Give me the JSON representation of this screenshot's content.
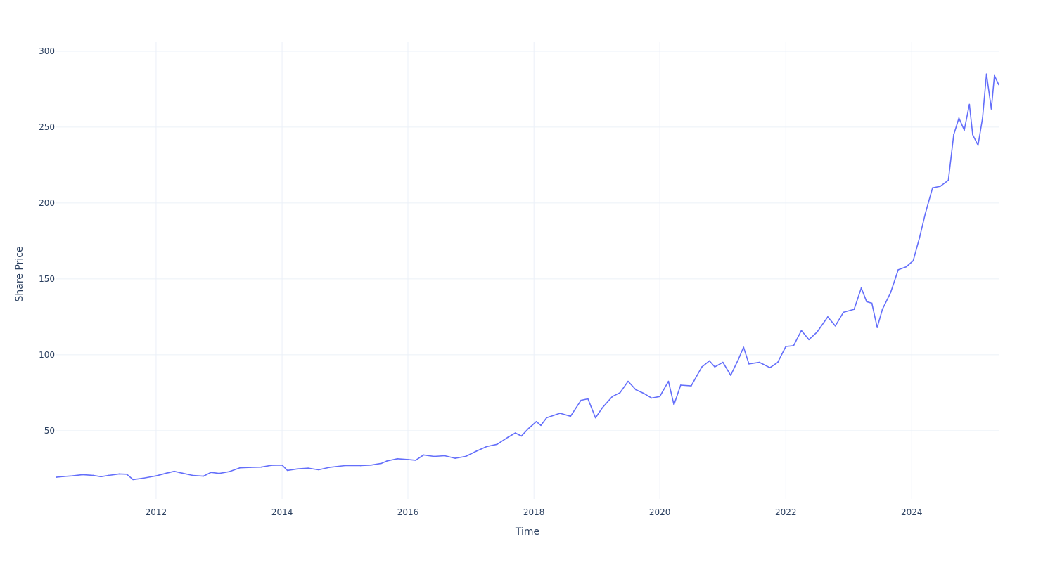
{
  "chart_data": {
    "type": "line",
    "title": "",
    "xlabel": "Time",
    "ylabel": "Share Price",
    "x_range": [
      "2010-06-01",
      "2025-05-20"
    ],
    "ylim": [
      5,
      306
    ],
    "x_ticks": [
      {
        "date": "2012-01-01",
        "label": "2012"
      },
      {
        "date": "2014-01-01",
        "label": "2014"
      },
      {
        "date": "2016-01-01",
        "label": "2016"
      },
      {
        "date": "2018-01-01",
        "label": "2018"
      },
      {
        "date": "2020-01-01",
        "label": "2020"
      },
      {
        "date": "2022-01-01",
        "label": "2022"
      },
      {
        "date": "2024-01-01",
        "label": "2024"
      }
    ],
    "y_ticks": [
      50,
      100,
      150,
      200,
      250,
      300
    ],
    "grid": true,
    "legend": "none",
    "line_color": "#636efa",
    "series": [
      {
        "points": [
          [
            "2010-06-01",
            19.3
          ],
          [
            "2010-07-15",
            19.8
          ],
          [
            "2010-09-01",
            20.2
          ],
          [
            "2010-11-01",
            21.0
          ],
          [
            "2011-01-01",
            20.5
          ],
          [
            "2011-02-15",
            19.7
          ],
          [
            "2011-04-01",
            20.5
          ],
          [
            "2011-06-01",
            21.5
          ],
          [
            "2011-07-15",
            21.3
          ],
          [
            "2011-08-20",
            17.8
          ],
          [
            "2011-10-15",
            18.6
          ],
          [
            "2011-12-01",
            19.6
          ],
          [
            "2012-01-01",
            20.2
          ],
          [
            "2012-03-01",
            22.0
          ],
          [
            "2012-04-15",
            23.2
          ],
          [
            "2012-06-01",
            22.0
          ],
          [
            "2012-08-01",
            20.5
          ],
          [
            "2012-10-01",
            20.0
          ],
          [
            "2012-11-15",
            22.5
          ],
          [
            "2013-01-01",
            21.8
          ],
          [
            "2013-03-01",
            23.0
          ],
          [
            "2013-05-01",
            25.5
          ],
          [
            "2013-07-01",
            25.8
          ],
          [
            "2013-09-01",
            26.0
          ],
          [
            "2013-11-01",
            27.2
          ],
          [
            "2014-01-01",
            27.3
          ],
          [
            "2014-02-01",
            23.8
          ],
          [
            "2014-04-01",
            24.8
          ],
          [
            "2014-06-01",
            25.3
          ],
          [
            "2014-08-01",
            24.2
          ],
          [
            "2014-10-01",
            25.8
          ],
          [
            "2015-01-01",
            27.0
          ],
          [
            "2015-04-01",
            27.0
          ],
          [
            "2015-06-01",
            27.3
          ],
          [
            "2015-08-01",
            28.5
          ],
          [
            "2015-09-01",
            30.0
          ],
          [
            "2015-11-01",
            31.5
          ],
          [
            "2016-01-01",
            31.0
          ],
          [
            "2016-02-15",
            30.5
          ],
          [
            "2016-04-01",
            34.0
          ],
          [
            "2016-06-01",
            33.0
          ],
          [
            "2016-08-01",
            33.5
          ],
          [
            "2016-10-01",
            31.8
          ],
          [
            "2016-12-01",
            33.0
          ],
          [
            "2017-02-01",
            36.5
          ],
          [
            "2017-04-01",
            39.5
          ],
          [
            "2017-06-01",
            41.0
          ],
          [
            "2017-08-01",
            45.5
          ],
          [
            "2017-09-15",
            48.5
          ],
          [
            "2017-10-20",
            46.5
          ],
          [
            "2017-12-01",
            51.5
          ],
          [
            "2018-01-15",
            56.0
          ],
          [
            "2018-02-10",
            53.5
          ],
          [
            "2018-03-15",
            58.5
          ],
          [
            "2018-06-01",
            61.5
          ],
          [
            "2018-08-01",
            59.5
          ],
          [
            "2018-10-01",
            70.0
          ],
          [
            "2018-11-10",
            71.0
          ],
          [
            "2018-12-24",
            58.5
          ],
          [
            "2019-02-01",
            65.0
          ],
          [
            "2019-04-01",
            72.5
          ],
          [
            "2019-05-15",
            75.0
          ],
          [
            "2019-07-01",
            82.5
          ],
          [
            "2019-08-15",
            77.0
          ],
          [
            "2019-10-01",
            74.5
          ],
          [
            "2019-11-15",
            71.5
          ],
          [
            "2020-01-01",
            72.5
          ],
          [
            "2020-02-20",
            82.5
          ],
          [
            "2020-03-23",
            67.0
          ],
          [
            "2020-05-01",
            80.0
          ],
          [
            "2020-07-01",
            79.5
          ],
          [
            "2020-09-01",
            92.0
          ],
          [
            "2020-10-15",
            96.0
          ],
          [
            "2020-11-15",
            92.0
          ],
          [
            "2021-01-01",
            95.0
          ],
          [
            "2021-02-15",
            86.5
          ],
          [
            "2021-04-01",
            97.0
          ],
          [
            "2021-05-01",
            105.0
          ],
          [
            "2021-06-01",
            94.0
          ],
          [
            "2021-08-01",
            95.0
          ],
          [
            "2021-10-01",
            91.5
          ],
          [
            "2021-11-15",
            95.0
          ],
          [
            "2022-01-01",
            105.5
          ],
          [
            "2022-02-15",
            106.0
          ],
          [
            "2022-04-01",
            116.0
          ],
          [
            "2022-05-15",
            110.0
          ],
          [
            "2022-07-01",
            115.0
          ],
          [
            "2022-09-01",
            125.0
          ],
          [
            "2022-10-15",
            119.0
          ],
          [
            "2022-12-01",
            128.0
          ],
          [
            "2023-02-01",
            130.0
          ],
          [
            "2023-03-15",
            144.0
          ],
          [
            "2023-04-15",
            135.0
          ],
          [
            "2023-05-15",
            134.0
          ],
          [
            "2023-06-15",
            118.0
          ],
          [
            "2023-07-15",
            130.0
          ],
          [
            "2023-09-01",
            141.0
          ],
          [
            "2023-10-15",
            156.0
          ],
          [
            "2023-12-01",
            158.0
          ],
          [
            "2024-01-10",
            162.0
          ],
          [
            "2024-02-15",
            177.0
          ],
          [
            "2024-03-20",
            193.0
          ],
          [
            "2024-05-01",
            210.0
          ],
          [
            "2024-06-15",
            211.0
          ],
          [
            "2024-08-01",
            215.0
          ],
          [
            "2024-09-01",
            245.0
          ],
          [
            "2024-10-01",
            256.0
          ],
          [
            "2024-11-01",
            248.0
          ],
          [
            "2024-12-01",
            265.0
          ],
          [
            "2024-12-20",
            245.0
          ],
          [
            "2025-01-20",
            238.0
          ],
          [
            "2025-02-15",
            256.0
          ],
          [
            "2025-03-10",
            285.0
          ],
          [
            "2025-04-07",
            262.0
          ],
          [
            "2025-04-25",
            284.0
          ],
          [
            "2025-05-20",
            278.0
          ]
        ]
      }
    ]
  }
}
